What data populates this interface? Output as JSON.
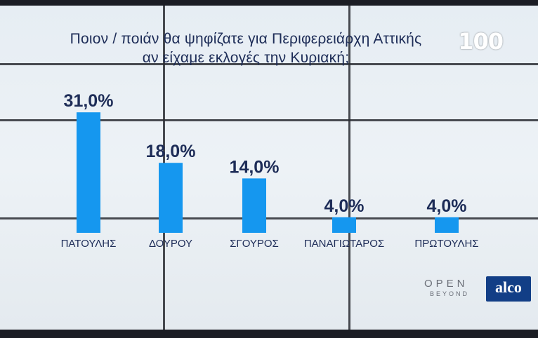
{
  "chart_data": {
    "type": "bar",
    "title_lines": [
      "Ποιον / ποιάν θα ψηφίζατε για Περιφερειάρχη Αττικής",
      "αν είχαμε εκλογές την Κυριακή;"
    ],
    "categories": [
      "ΠΑΤΟΥΛΗΣ",
      "ΔΟΥΡΟΥ",
      "ΣΓΟΥΡΟΣ",
      "ΠΑΝΑΓΙΩΤΑΡΟΣ",
      "ΠΡΩΤΟΥΛΗΣ"
    ],
    "values": [
      31.0,
      18.0,
      14.0,
      4.0,
      4.0
    ],
    "value_labels": [
      "31,0%",
      "18,0%",
      "14,0%",
      "4,0%",
      "4,0%"
    ],
    "bar_color": "#1597ef",
    "value_label_color": "#1d2c57",
    "ylim": [
      0,
      35
    ],
    "grid": false,
    "legend": "none"
  },
  "branding": {
    "channel_logo": "100",
    "open_logo": "OPEN",
    "open_sub": "BEYOND",
    "alco_logo": "alco"
  },
  "colors": {
    "title": "#1d2c57",
    "background": "#e9eef3"
  }
}
